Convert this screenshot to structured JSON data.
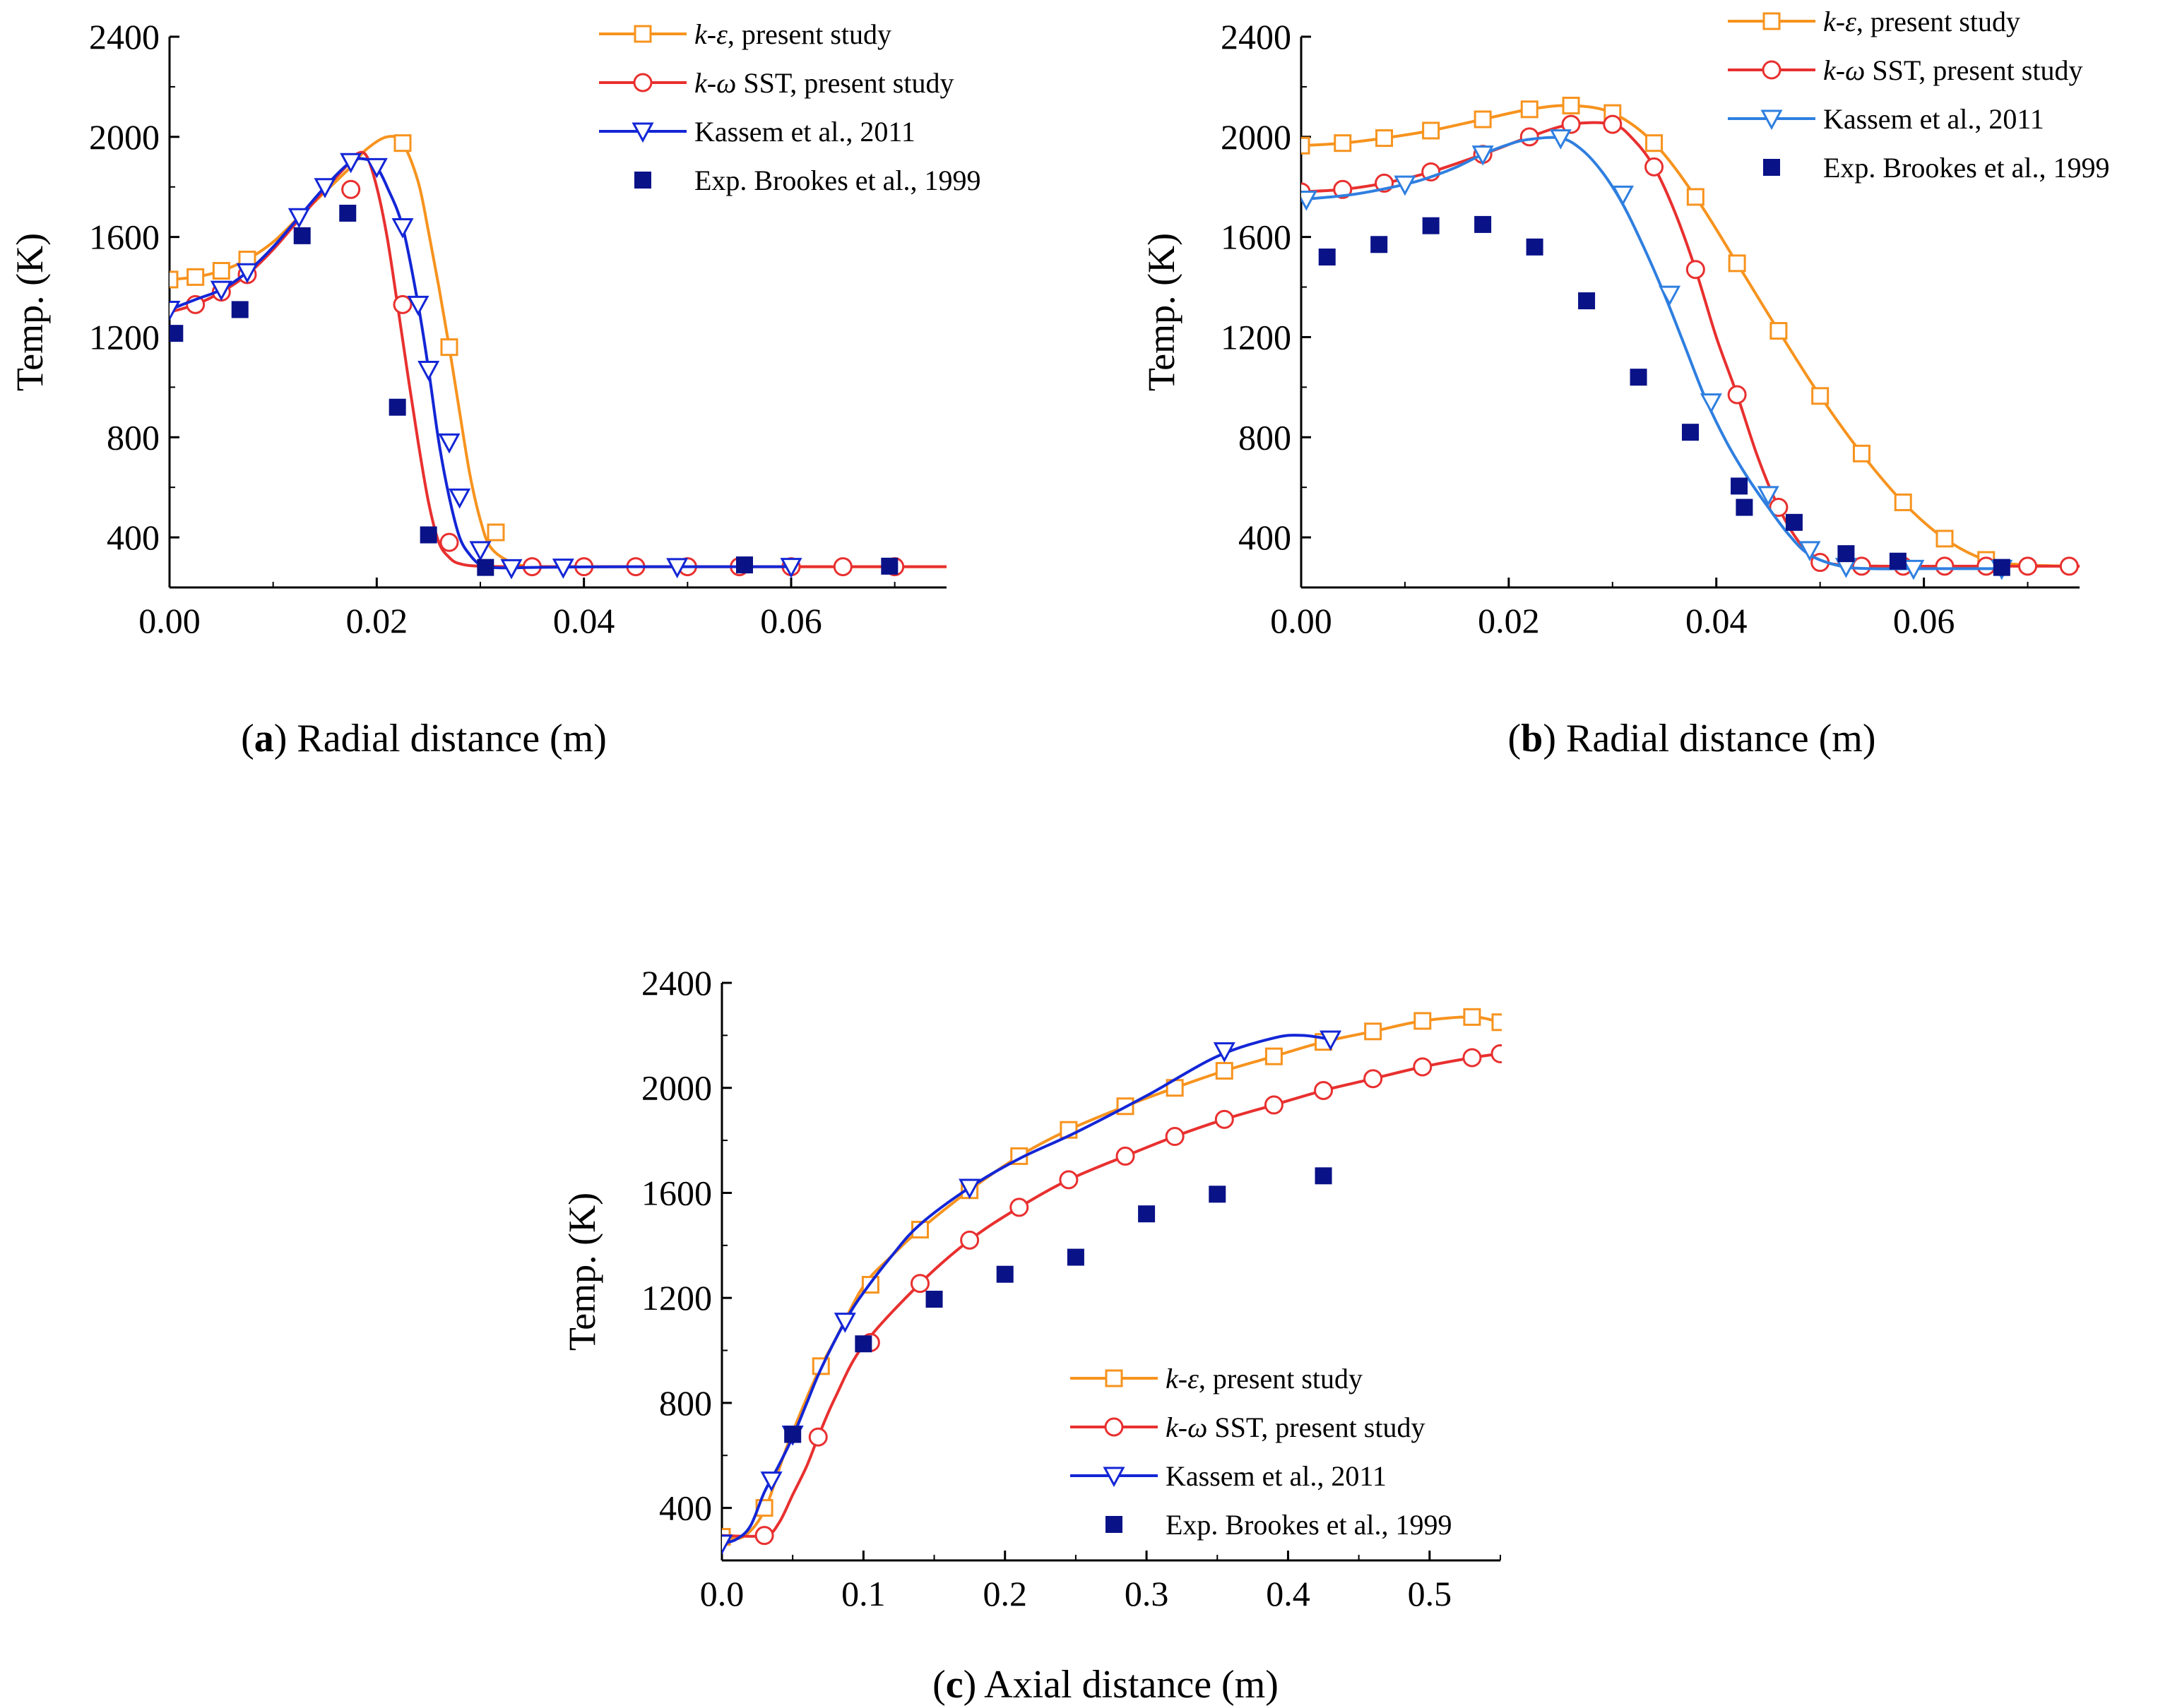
{
  "figure": {
    "captions": [
      {
        "letter": "a",
        "text": "Radial distance (m)"
      },
      {
        "letter": "b",
        "text": "Radial distance (m)"
      },
      {
        "letter": "c",
        "text": "Axial distance (m)"
      }
    ]
  },
  "chart_data": [
    {
      "type": "line",
      "panel": "a",
      "xlabel": "",
      "ylabel": "Temp. (K)",
      "xlim": [
        0,
        0.075
      ],
      "ylim": [
        200,
        2400
      ],
      "xticks": [
        0.0,
        0.02,
        0.04,
        0.06
      ],
      "xtick_labels": [
        "0.00",
        "0.02",
        "0.04",
        "0.06"
      ],
      "yticks": [
        400,
        800,
        1200,
        1600,
        2000,
        2400
      ],
      "ytick_labels": [
        "400",
        "800",
        "1200",
        "1600",
        "2000",
        "2400"
      ],
      "legend_position": "top-right",
      "series": [
        {
          "name": "k-ε, present study",
          "label_italic": "k-ε",
          "label_rest": ", present study",
          "color": "#f7931e",
          "marker": "square",
          "x": [
            0.0,
            0.0025,
            0.005,
            0.0075,
            0.01,
            0.0125,
            0.015,
            0.0175,
            0.019,
            0.021,
            0.0225,
            0.024,
            0.025,
            0.026,
            0.027,
            0.028,
            0.029,
            0.03,
            0.031,
            0.033,
            0.035,
            0.04,
            0.045,
            0.05,
            0.055,
            0.06,
            0.065,
            0.07,
            0.075
          ],
          "y": [
            1430,
            1440,
            1465,
            1510,
            1580,
            1680,
            1780,
            1880,
            1950,
            2000,
            1975,
            1820,
            1620,
            1400,
            1160,
            900,
            650,
            470,
            360,
            300,
            285,
            283,
            283,
            283,
            283,
            283,
            283,
            283,
            283
          ],
          "marker_x": [
            0.0,
            0.0025,
            0.005,
            0.0075,
            0.0225,
            0.027,
            0.0315
          ],
          "marker_y": [
            1430,
            1440,
            1465,
            1510,
            1975,
            1160,
            420
          ]
        },
        {
          "name": "k-ω SST, present study",
          "label_italic": "k-ω",
          "label_rest": " SST, present study",
          "color": "#e8302f",
          "marker": "circle",
          "x": [
            0.0,
            0.0025,
            0.005,
            0.0075,
            0.01,
            0.0125,
            0.015,
            0.017,
            0.018,
            0.019,
            0.02,
            0.021,
            0.022,
            0.023,
            0.024,
            0.025,
            0.026,
            0.027,
            0.028,
            0.03,
            0.035,
            0.04,
            0.045,
            0.05,
            0.055,
            0.06,
            0.065,
            0.07,
            0.075
          ],
          "y": [
            1300,
            1330,
            1380,
            1450,
            1550,
            1670,
            1790,
            1880,
            1930,
            1925,
            1800,
            1600,
            1330,
            1050,
            780,
            540,
            380,
            320,
            295,
            285,
            283,
            283,
            283,
            283,
            283,
            283,
            283,
            283,
            283
          ],
          "marker_x": [
            0.0025,
            0.005,
            0.0075,
            0.0175,
            0.0225,
            0.027,
            0.035,
            0.04,
            0.045,
            0.05,
            0.055,
            0.06,
            0.065,
            0.07
          ],
          "marker_y": [
            1330,
            1380,
            1450,
            1790,
            1330,
            380,
            283,
            283,
            283,
            283,
            283,
            283,
            283,
            283
          ]
        },
        {
          "name": "Kassem et al., 2011",
          "label_italic": "",
          "label_rest": "Kassem et al., 2011",
          "color": "#1326d6",
          "marker": "triangle",
          "x": [
            0.0,
            0.0025,
            0.005,
            0.0075,
            0.01,
            0.0125,
            0.015,
            0.0175,
            0.019,
            0.02,
            0.021,
            0.0225,
            0.024,
            0.025,
            0.026,
            0.027,
            0.028,
            0.029,
            0.03,
            0.031,
            0.033,
            0.035,
            0.04,
            0.045,
            0.05,
            0.055,
            0.06
          ],
          "y": [
            1310,
            1350,
            1390,
            1460,
            1560,
            1680,
            1800,
            1900,
            1910,
            1880,
            1800,
            1640,
            1330,
            1070,
            780,
            560,
            400,
            330,
            290,
            280,
            278,
            280,
            282,
            283,
            283,
            283,
            283
          ],
          "marker_x": [
            0.0,
            0.005,
            0.0075,
            0.0125,
            0.015,
            0.0175,
            0.02,
            0.0225,
            0.024,
            0.025,
            0.027,
            0.028,
            0.03,
            0.033,
            0.038,
            0.049,
            0.06
          ],
          "marker_y": [
            1310,
            1390,
            1460,
            1680,
            1800,
            1900,
            1880,
            1640,
            1330,
            1070,
            780,
            560,
            350,
            278,
            280,
            282,
            283
          ]
        },
        {
          "name": "Exp. Brookes et al., 1999",
          "label_italic": "",
          "label_rest": "Exp. Brookes et al., 1999",
          "color": "#0a1288",
          "marker": "filled-square",
          "x": [
            0.0005,
            0.0068,
            0.0128,
            0.0172,
            0.022,
            0.025,
            0.0305,
            0.0555,
            0.0695
          ],
          "y": [
            1215,
            1310,
            1605,
            1695,
            920,
            410,
            280,
            290,
            285
          ]
        }
      ]
    },
    {
      "type": "line",
      "panel": "b",
      "xlabel": "",
      "ylabel": "Temp. (K)",
      "xlim": [
        0,
        0.075
      ],
      "ylim": [
        200,
        2400
      ],
      "xticks": [
        0.0,
        0.02,
        0.04,
        0.06
      ],
      "xtick_labels": [
        "0.00",
        "0.02",
        "0.04",
        "0.06"
      ],
      "yticks": [
        400,
        800,
        1200,
        1600,
        2000,
        2400
      ],
      "ytick_labels": [
        "400",
        "800",
        "1200",
        "1600",
        "2000",
        "2400"
      ],
      "legend_position": "top-right",
      "series": [
        {
          "name": "k-ε, present study",
          "label_italic": "k-ε",
          "label_rest": ", present study",
          "color": "#f7931e",
          "marker": "square",
          "x": [
            0.0,
            0.004,
            0.008,
            0.0125,
            0.0175,
            0.022,
            0.026,
            0.03,
            0.034,
            0.038,
            0.042,
            0.046,
            0.05,
            0.054,
            0.058,
            0.062,
            0.066,
            0.07,
            0.075
          ],
          "y": [
            1965,
            1975,
            1995,
            2025,
            2070,
            2110,
            2125,
            2095,
            1975,
            1760,
            1495,
            1225,
            965,
            735,
            540,
            395,
            310,
            290,
            285
          ],
          "marker_x": [
            0.0,
            0.004,
            0.008,
            0.0125,
            0.0175,
            0.022,
            0.026,
            0.03,
            0.034,
            0.038,
            0.042,
            0.046,
            0.05,
            0.054,
            0.058,
            0.062,
            0.066
          ],
          "marker_y": [
            1965,
            1975,
            1995,
            2025,
            2070,
            2110,
            2125,
            2095,
            1975,
            1760,
            1495,
            1225,
            965,
            735,
            540,
            395,
            310
          ]
        },
        {
          "name": "k-ω SST, present study",
          "label_italic": "k-ω",
          "label_rest": "  SST, present study",
          "color": "#e8302f",
          "marker": "circle",
          "x": [
            0.0,
            0.004,
            0.008,
            0.0125,
            0.0175,
            0.022,
            0.026,
            0.03,
            0.032,
            0.034,
            0.036,
            0.038,
            0.04,
            0.042,
            0.044,
            0.046,
            0.048,
            0.05,
            0.052,
            0.056,
            0.062,
            0.068,
            0.074,
            0.075
          ],
          "y": [
            1780,
            1790,
            1815,
            1860,
            1930,
            2000,
            2050,
            2050,
            1990,
            1880,
            1700,
            1470,
            1200,
            970,
            720,
            520,
            380,
            310,
            290,
            285,
            285,
            285,
            285,
            285
          ],
          "marker_x": [
            0.0,
            0.004,
            0.008,
            0.0125,
            0.0175,
            0.022,
            0.026,
            0.03,
            0.034,
            0.038,
            0.042,
            0.046,
            0.05,
            0.054,
            0.058,
            0.062,
            0.066,
            0.07,
            0.074
          ],
          "marker_y": [
            1780,
            1790,
            1815,
            1860,
            1930,
            2000,
            2050,
            2050,
            1880,
            1470,
            970,
            520,
            300,
            285,
            285,
            285,
            285,
            285,
            285
          ]
        },
        {
          "name": "Kassem et al., 2011",
          "label_italic": "",
          "label_rest": "Kassem et al., 2011",
          "color": "#2f7fe0",
          "marker": "triangle",
          "x": [
            0.0,
            0.005,
            0.01,
            0.0125,
            0.015,
            0.0175,
            0.02,
            0.022,
            0.025,
            0.027,
            0.029,
            0.031,
            0.033,
            0.035,
            0.037,
            0.039,
            0.041,
            0.043,
            0.045,
            0.047,
            0.049,
            0.052,
            0.055,
            0.06,
            0.065,
            0.068
          ],
          "y": [
            1750,
            1770,
            1810,
            1840,
            1880,
            1930,
            1970,
            1990,
            1995,
            1950,
            1860,
            1730,
            1560,
            1370,
            1160,
            950,
            780,
            640,
            520,
            410,
            330,
            285,
            275,
            275,
            275,
            275
          ],
          "marker_x": [
            0.0005,
            0.01,
            0.0175,
            0.025,
            0.031,
            0.0355,
            0.0395,
            0.045,
            0.049,
            0.0525,
            0.059,
            0.0675
          ],
          "marker_y": [
            1750,
            1810,
            1930,
            1995,
            1770,
            1370,
            940,
            570,
            350,
            283,
            275,
            275
          ]
        },
        {
          "name": "Exp. Brookes et al., 1999",
          "label_italic": "",
          "label_rest": "Exp. Brookes et al., 1999",
          "color": "#0a1288",
          "marker": "filled-square",
          "x": [
            0.0025,
            0.0075,
            0.0125,
            0.0175,
            0.0225,
            0.0275,
            0.0325,
            0.0375,
            0.0422,
            0.0427,
            0.0475,
            0.0525,
            0.0575,
            0.0675
          ],
          "y": [
            1520,
            1570,
            1645,
            1650,
            1560,
            1345,
            1040,
            820,
            605,
            520,
            460,
            335,
            305,
            280
          ]
        }
      ]
    },
    {
      "type": "line",
      "panel": "c",
      "xlabel": "",
      "ylabel": "Temp. (K)",
      "xlim": [
        0,
        0.55
      ],
      "ylim": [
        200,
        2400
      ],
      "xticks": [
        0.0,
        0.1,
        0.2,
        0.3,
        0.4,
        0.5
      ],
      "xtick_labels": [
        "0.0",
        "0.1",
        "0.2",
        "0.3",
        "0.4",
        "0.5"
      ],
      "yticks": [
        400,
        800,
        1200,
        1600,
        2000,
        2400
      ],
      "ytick_labels": [
        "400",
        "800",
        "1200",
        "1600",
        "2000",
        "2400"
      ],
      "legend_position": "bottom-right",
      "series": [
        {
          "name": "k-ε, present study",
          "label_italic": "k-ε",
          "label_rest": ", present study",
          "color": "#f7931e",
          "marker": "square",
          "x": [
            0.0,
            0.015,
            0.03,
            0.045,
            0.06,
            0.07,
            0.08,
            0.1,
            0.12,
            0.14,
            0.175,
            0.21,
            0.245,
            0.285,
            0.32,
            0.355,
            0.39,
            0.425,
            0.46,
            0.495,
            0.53,
            0.55
          ],
          "y": [
            290,
            290,
            390,
            620,
            820,
            940,
            1040,
            1245,
            1360,
            1460,
            1610,
            1740,
            1840,
            1930,
            2000,
            2065,
            2120,
            2175,
            2215,
            2255,
            2270,
            2250
          ],
          "marker_x": [
            0.0,
            0.03,
            0.07,
            0.105,
            0.14,
            0.175,
            0.21,
            0.245,
            0.285,
            0.32,
            0.355,
            0.39,
            0.425,
            0.46,
            0.495,
            0.53,
            0.55
          ],
          "marker_y": [
            290,
            400,
            940,
            1250,
            1460,
            1610,
            1740,
            1840,
            1930,
            2000,
            2065,
            2120,
            2175,
            2215,
            2255,
            2270,
            2250
          ]
        },
        {
          "name": "k-ω SST, present study",
          "label_italic": "k-ω",
          "label_rest": " SST, present study",
          "color": "#e8302f",
          "marker": "circle",
          "x": [
            0.0,
            0.03,
            0.04,
            0.05,
            0.06,
            0.068,
            0.08,
            0.1,
            0.14,
            0.175,
            0.21,
            0.245,
            0.285,
            0.32,
            0.355,
            0.39,
            0.425,
            0.46,
            0.495,
            0.53,
            0.55
          ],
          "y": [
            295,
            295,
            340,
            450,
            560,
            670,
            820,
            1020,
            1255,
            1420,
            1545,
            1650,
            1740,
            1815,
            1880,
            1935,
            1990,
            2035,
            2080,
            2115,
            2130
          ],
          "marker_x": [
            0.03,
            0.068,
            0.105,
            0.14,
            0.175,
            0.21,
            0.245,
            0.285,
            0.32,
            0.355,
            0.39,
            0.425,
            0.46,
            0.495,
            0.53,
            0.55
          ],
          "marker_y": [
            295,
            670,
            1030,
            1255,
            1420,
            1545,
            1650,
            1740,
            1815,
            1880,
            1935,
            1990,
            2035,
            2080,
            2115,
            2130
          ]
        },
        {
          "name": "Kassem et al., 2011",
          "label_italic": "",
          "label_rest": "Kassem et al., 2011",
          "color": "#1326d6",
          "marker": "triangle",
          "x": [
            0.0,
            0.01,
            0.02,
            0.03,
            0.04,
            0.05,
            0.06,
            0.07,
            0.087,
            0.1,
            0.12,
            0.14,
            0.175,
            0.21,
            0.25,
            0.3,
            0.35,
            0.39,
            0.41,
            0.43
          ],
          "y": [
            265,
            280,
            330,
            460,
            560,
            670,
            800,
            930,
            1110,
            1220,
            1360,
            1480,
            1620,
            1730,
            1830,
            1970,
            2120,
            2190,
            2200,
            2185
          ],
          "marker_x": [
            0.0,
            0.035,
            0.05,
            0.087,
            0.175,
            0.355,
            0.43
          ],
          "marker_y": [
            265,
            505,
            680,
            1110,
            1620,
            2140,
            2185
          ]
        },
        {
          "name": "Exp. Brookes et al., 1999",
          "label_italic": "",
          "label_rest": "Exp. Brookes et al., 1999",
          "color": "#0a1288",
          "marker": "filled-square",
          "x": [
            0.05,
            0.1,
            0.15,
            0.2,
            0.25,
            0.3,
            0.35,
            0.425
          ],
          "y": [
            680,
            1025,
            1195,
            1290,
            1355,
            1520,
            1595,
            1665
          ]
        }
      ]
    }
  ]
}
